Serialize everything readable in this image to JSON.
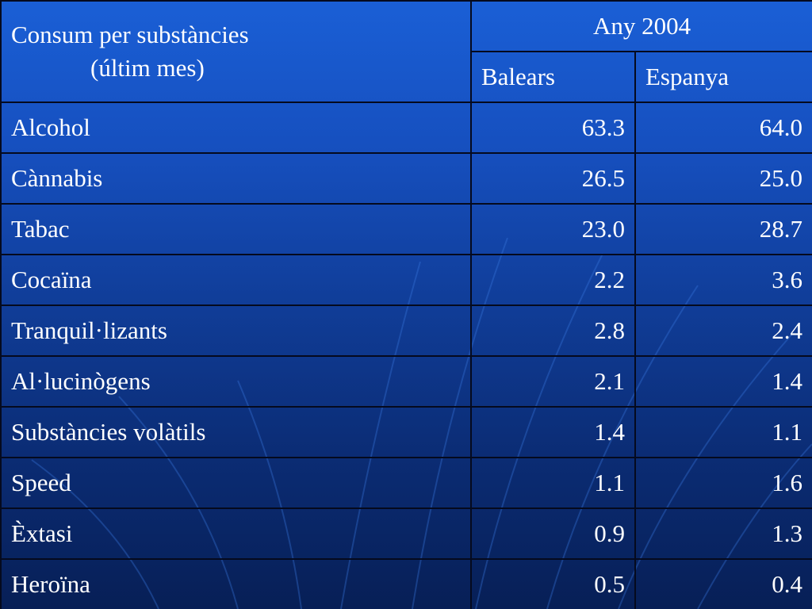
{
  "table": {
    "title_line1": "Consum per substàncies",
    "title_line2": "(últim mes)",
    "year_header": "Any 2004",
    "columns": [
      "Balears",
      "Espanya"
    ],
    "rows": [
      {
        "name": "Alcohol",
        "balears": "63.3",
        "espanya": "64.0"
      },
      {
        "name": "Cànnabis",
        "balears": "26.5",
        "espanya": "25.0"
      },
      {
        "name": "Tabac",
        "balears": "23.0",
        "espanya": "28.7"
      },
      {
        "name": "Cocaïna",
        "balears": "2.2",
        "espanya": "3.6"
      },
      {
        "name": "Tranquil·lizants",
        "balears": "2.8",
        "espanya": "2.4"
      },
      {
        "name": "Al·lucinògens",
        "balears": "2.1",
        "espanya": "1.4"
      },
      {
        "name": "Substàncies volàtils",
        "balears": "1.4",
        "espanya": "1.1"
      },
      {
        "name": "Speed",
        "balears": "1.1",
        "espanya": "1.6"
      },
      {
        "name": "Èxtasi",
        "balears": "0.9",
        "espanya": "1.3"
      },
      {
        "name": "Heroïna",
        "balears": "0.5",
        "espanya": "0.4"
      }
    ]
  }
}
